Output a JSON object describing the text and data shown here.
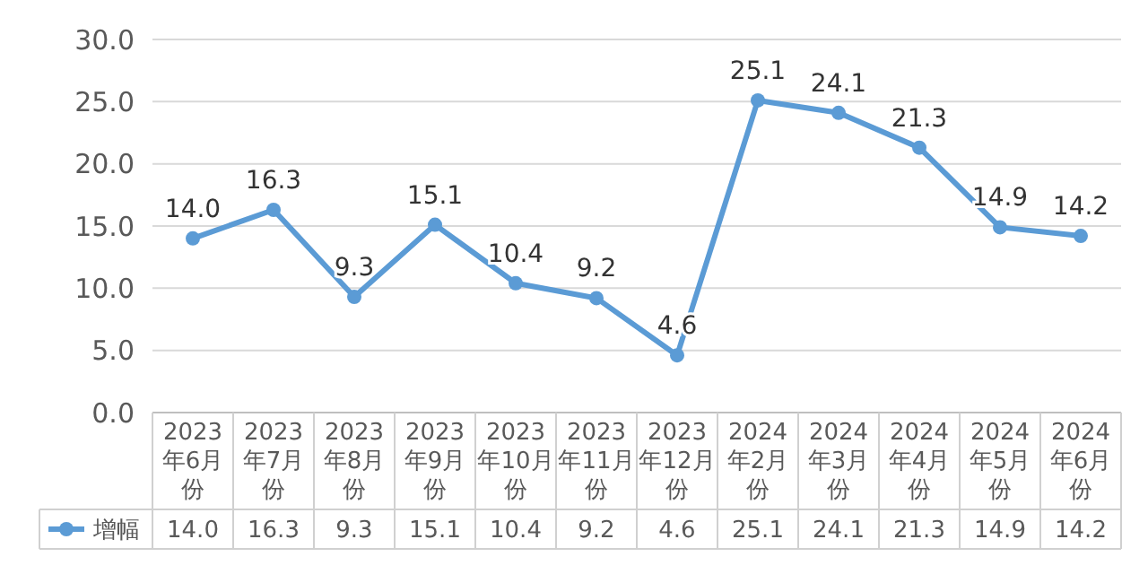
{
  "chart_data": {
    "type": "line",
    "categories": [
      "2023年6月份",
      "2023年7月份",
      "2023年8月份",
      "2023年9月份",
      "2023年10月份",
      "2023年11月份",
      "2023年12月份",
      "2024年2月份",
      "2024年3月份",
      "2024年4月份",
      "2024年5月份",
      "2024年6月份"
    ],
    "series": [
      {
        "name": "增幅",
        "color": "#5b9bd5",
        "values": [
          14.0,
          16.3,
          9.3,
          15.1,
          10.4,
          9.2,
          4.6,
          25.1,
          24.1,
          21.3,
          14.9,
          14.2
        ],
        "value_labels": [
          "14.0",
          "16.3",
          "9.3",
          "15.1",
          "10.4",
          "9.2",
          "4.6",
          "25.1",
          "24.1",
          "21.3",
          "14.9",
          "14.2"
        ]
      }
    ],
    "ylim": [
      0,
      30
    ],
    "yticks": [
      {
        "value": 0,
        "label": "0.0"
      },
      {
        "value": 5,
        "label": "5.0"
      },
      {
        "value": 10,
        "label": "10.0"
      },
      {
        "value": 15,
        "label": "15.0"
      },
      {
        "value": 20,
        "label": "20.0"
      },
      {
        "value": 25,
        "label": "25.0"
      },
      {
        "value": 30,
        "label": "30.0"
      }
    ],
    "grid": "y",
    "legend": "bottom",
    "marker": "circle",
    "line_style": "solid"
  }
}
